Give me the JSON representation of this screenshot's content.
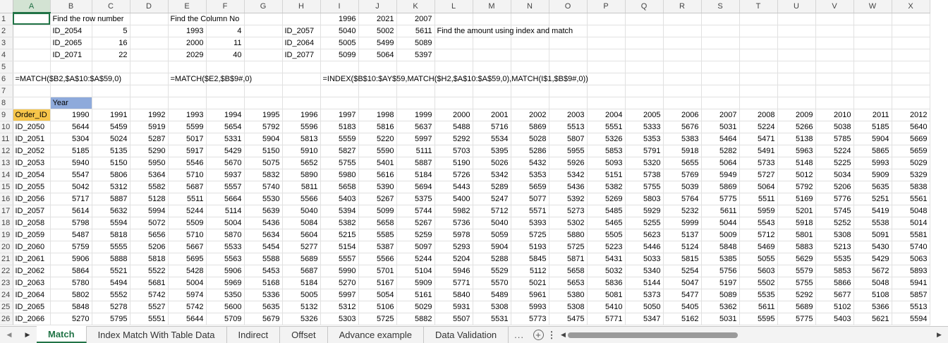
{
  "columns": [
    "A",
    "B",
    "C",
    "D",
    "E",
    "F",
    "G",
    "H",
    "I",
    "J",
    "K",
    "L",
    "M",
    "N",
    "O",
    "P",
    "Q",
    "R",
    "S",
    "T",
    "U",
    "V",
    "W",
    "X"
  ],
  "selected_column": "A",
  "top_rows": [
    {
      "row": 1,
      "cells": {
        "B": "Find the row number",
        "E": "Find the Column No",
        "I": "1996",
        "J": "2021",
        "K": "2007"
      }
    },
    {
      "row": 2,
      "cells": {
        "B": "ID_2054",
        "C": "5",
        "E": "1993",
        "F": "4",
        "H": "ID_2057",
        "I": "5040",
        "J": "5002",
        "K": "5611",
        "L": "Find the amount using index and match"
      }
    },
    {
      "row": 3,
      "cells": {
        "B": "ID_2065",
        "C": "16",
        "E": "2000",
        "F": "11",
        "H": "ID_2064",
        "I": "5005",
        "J": "5499",
        "K": "5089"
      }
    },
    {
      "row": 4,
      "cells": {
        "B": "ID_2071",
        "C": "22",
        "E": "2029",
        "F": "40",
        "H": "ID_2077",
        "I": "5099",
        "J": "5064",
        "K": "5397"
      }
    },
    {
      "row": 5,
      "cells": {}
    },
    {
      "row": 6,
      "cells": {
        "A": "=MATCH($B2,$A$10:$A$59,0)",
        "E": "=MATCH($E2,$B$9#,0)",
        "I": "=INDEX($B$10:$AY$59,MATCH($H2,$A$10:$A$59,0),MATCH(I$1,$B$9#,0))"
      }
    },
    {
      "row": 7,
      "cells": {}
    },
    {
      "row": 8,
      "cells": {
        "B": "Year"
      }
    }
  ],
  "table_header": {
    "order_id_label": "Order_ID",
    "years": [
      "1990",
      "1991",
      "1992",
      "1993",
      "1994",
      "1995",
      "1996",
      "1997",
      "1998",
      "1999",
      "2000",
      "2001",
      "2002",
      "2003",
      "2004",
      "2005",
      "2006",
      "2007",
      "2008",
      "2009",
      "2010",
      "2011",
      "2012"
    ]
  },
  "table_rows": [
    {
      "row": 10,
      "id": "ID_2050",
      "values": [
        "5644",
        "5459",
        "5919",
        "5599",
        "5654",
        "5792",
        "5596",
        "5183",
        "5816",
        "5637",
        "5488",
        "5716",
        "5869",
        "5513",
        "5551",
        "5333",
        "5676",
        "5031",
        "5224",
        "5266",
        "5038",
        "5185",
        "5640"
      ]
    },
    {
      "row": 11,
      "id": "ID_2051",
      "values": [
        "5304",
        "5024",
        "5287",
        "5017",
        "5331",
        "5904",
        "5813",
        "5559",
        "5220",
        "5997",
        "5292",
        "5534",
        "5028",
        "5807",
        "5326",
        "5353",
        "5383",
        "5464",
        "5471",
        "5138",
        "5785",
        "5904",
        "5669"
      ]
    },
    {
      "row": 12,
      "id": "ID_2052",
      "values": [
        "5185",
        "5135",
        "5290",
        "5917",
        "5429",
        "5150",
        "5910",
        "5827",
        "5590",
        "5111",
        "5703",
        "5395",
        "5286",
        "5955",
        "5853",
        "5791",
        "5918",
        "5282",
        "5491",
        "5963",
        "5224",
        "5865",
        "5659"
      ]
    },
    {
      "row": 13,
      "id": "ID_2053",
      "values": [
        "5940",
        "5150",
        "5950",
        "5546",
        "5670",
        "5075",
        "5652",
        "5755",
        "5401",
        "5887",
        "5190",
        "5026",
        "5432",
        "5926",
        "5093",
        "5320",
        "5655",
        "5064",
        "5733",
        "5148",
        "5225",
        "5993",
        "5029"
      ]
    },
    {
      "row": 14,
      "id": "ID_2054",
      "values": [
        "5547",
        "5806",
        "5364",
        "5710",
        "5937",
        "5832",
        "5890",
        "5980",
        "5616",
        "5184",
        "5726",
        "5342",
        "5353",
        "5342",
        "5151",
        "5738",
        "5769",
        "5949",
        "5727",
        "5012",
        "5034",
        "5909",
        "5329"
      ]
    },
    {
      "row": 15,
      "id": "ID_2055",
      "values": [
        "5042",
        "5312",
        "5582",
        "5687",
        "5557",
        "5740",
        "5811",
        "5658",
        "5390",
        "5694",
        "5443",
        "5289",
        "5659",
        "5436",
        "5382",
        "5755",
        "5039",
        "5869",
        "5064",
        "5792",
        "5206",
        "5635",
        "5838"
      ]
    },
    {
      "row": 16,
      "id": "ID_2056",
      "values": [
        "5717",
        "5887",
        "5128",
        "5511",
        "5664",
        "5530",
        "5566",
        "5403",
        "5267",
        "5375",
        "5400",
        "5247",
        "5077",
        "5392",
        "5269",
        "5803",
        "5764",
        "5775",
        "5511",
        "5169",
        "5776",
        "5251",
        "5561"
      ]
    },
    {
      "row": 17,
      "id": "ID_2057",
      "values": [
        "5614",
        "5632",
        "5994",
        "5244",
        "5114",
        "5639",
        "5040",
        "5394",
        "5099",
        "5744",
        "5982",
        "5712",
        "5571",
        "5273",
        "5485",
        "5929",
        "5232",
        "5611",
        "5959",
        "5201",
        "5745",
        "5419",
        "5048"
      ]
    },
    {
      "row": 18,
      "id": "ID_2058",
      "values": [
        "5798",
        "5594",
        "5072",
        "5509",
        "5004",
        "5436",
        "5084",
        "5382",
        "5658",
        "5267",
        "5736",
        "5040",
        "5393",
        "5302",
        "5465",
        "5255",
        "5999",
        "5044",
        "5543",
        "5918",
        "5252",
        "5538",
        "5014"
      ]
    },
    {
      "row": 19,
      "id": "ID_2059",
      "values": [
        "5487",
        "5818",
        "5656",
        "5710",
        "5870",
        "5634",
        "5604",
        "5215",
        "5585",
        "5259",
        "5978",
        "5059",
        "5725",
        "5880",
        "5505",
        "5623",
        "5137",
        "5009",
        "5712",
        "5801",
        "5308",
        "5091",
        "5581"
      ]
    },
    {
      "row": 20,
      "id": "ID_2060",
      "values": [
        "5759",
        "5555",
        "5206",
        "5667",
        "5533",
        "5454",
        "5277",
        "5154",
        "5387",
        "5097",
        "5293",
        "5904",
        "5193",
        "5725",
        "5223",
        "5446",
        "5124",
        "5848",
        "5469",
        "5883",
        "5213",
        "5430",
        "5740"
      ]
    },
    {
      "row": 21,
      "id": "ID_2061",
      "values": [
        "5906",
        "5888",
        "5818",
        "5695",
        "5563",
        "5588",
        "5689",
        "5557",
        "5566",
        "5244",
        "5204",
        "5288",
        "5845",
        "5871",
        "5431",
        "5033",
        "5815",
        "5385",
        "5055",
        "5629",
        "5535",
        "5429",
        "5063"
      ]
    },
    {
      "row": 22,
      "id": "ID_2062",
      "values": [
        "5864",
        "5521",
        "5522",
        "5428",
        "5906",
        "5453",
        "5687",
        "5990",
        "5701",
        "5104",
        "5946",
        "5529",
        "5112",
        "5658",
        "5032",
        "5340",
        "5254",
        "5756",
        "5603",
        "5579",
        "5853",
        "5672",
        "5893"
      ]
    },
    {
      "row": 23,
      "id": "ID_2063",
      "values": [
        "5780",
        "5494",
        "5681",
        "5004",
        "5969",
        "5168",
        "5184",
        "5270",
        "5167",
        "5909",
        "5771",
        "5570",
        "5021",
        "5653",
        "5836",
        "5144",
        "5047",
        "5197",
        "5502",
        "5755",
        "5866",
        "5048",
        "5941"
      ]
    },
    {
      "row": 24,
      "id": "ID_2064",
      "values": [
        "5802",
        "5552",
        "5742",
        "5974",
        "5350",
        "5336",
        "5005",
        "5997",
        "5054",
        "5161",
        "5840",
        "5489",
        "5961",
        "5380",
        "5081",
        "5373",
        "5477",
        "5089",
        "5535",
        "5292",
        "5677",
        "5108",
        "5857"
      ]
    },
    {
      "row": 25,
      "id": "ID_2065",
      "values": [
        "5848",
        "5278",
        "5527",
        "5742",
        "5600",
        "5635",
        "5132",
        "5312",
        "5106",
        "5029",
        "5931",
        "5308",
        "5993",
        "5308",
        "5410",
        "5050",
        "5405",
        "5362",
        "5611",
        "5689",
        "5102",
        "5366",
        "5513"
      ]
    },
    {
      "row": 26,
      "id": "ID_2066",
      "values": [
        "5270",
        "5795",
        "5551",
        "5644",
        "5709",
        "5679",
        "5326",
        "5303",
        "5725",
        "5882",
        "5507",
        "5531",
        "5773",
        "5475",
        "5771",
        "5347",
        "5162",
        "5031",
        "5595",
        "5775",
        "5403",
        "5621",
        "5594"
      ]
    }
  ],
  "sheet_tabs": [
    {
      "label": "Match",
      "active": true
    },
    {
      "label": "Index Match With Table Data",
      "active": false
    },
    {
      "label": "Indirect",
      "active": false
    },
    {
      "label": "Offset",
      "active": false
    },
    {
      "label": "Advance example",
      "active": false
    },
    {
      "label": "Data Validation",
      "active": false
    }
  ],
  "tabs_overflow": "...",
  "colors": {
    "accent": "#217346",
    "header_orange": "#f6c54a",
    "header_blue": "#8eaadb"
  },
  "icons": {
    "prev_sheet": "prev-sheet-icon",
    "next_sheet": "next-sheet-icon",
    "add_sheet": "add-sheet-icon",
    "more_options": "more-options-icon"
  }
}
